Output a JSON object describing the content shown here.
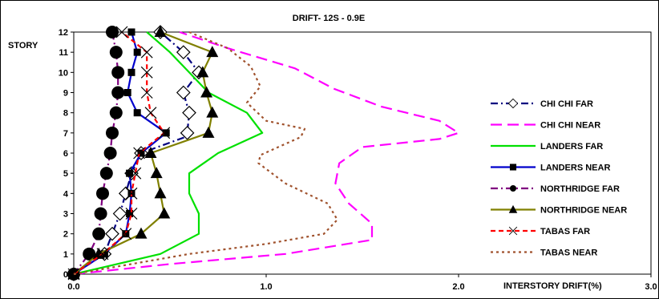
{
  "chart_data": {
    "type": "line",
    "title": "DRIFT- 12S - 0.9E",
    "xlabel": "INTERSTORY DRIFT(%)",
    "ylabel": "STORY",
    "xlim": [
      0,
      3
    ],
    "ylim": [
      0,
      12
    ],
    "xticks": [
      "0.0",
      "1.0",
      "2.0",
      "3.0"
    ],
    "yticks": [
      "0",
      "1",
      "2",
      "3",
      "4",
      "5",
      "6",
      "7",
      "8",
      "9",
      "10",
      "11",
      "12"
    ],
    "grid": false,
    "legend_position": "right",
    "series": [
      {
        "name": "CHI CHI FAR",
        "color": "#000080",
        "dash": "dashdot",
        "marker": "diamond-open",
        "x": [
          0.0,
          0.16,
          0.2,
          0.24,
          0.27,
          0.3,
          0.35,
          0.58,
          0.59,
          0.6,
          0.57,
          0.65,
          0.57,
          0.45
        ],
        "y": [
          0,
          1,
          2,
          3,
          4,
          5,
          6,
          6.8,
          7,
          8,
          9,
          10,
          11,
          12
        ]
      },
      {
        "name": "CHI CHI NEAR",
        "color": "#FF00FF",
        "dash": "longdash",
        "marker": "none",
        "x": [
          0.0,
          0.5,
          1.1,
          1.55,
          1.55,
          1.43,
          1.36,
          1.38,
          1.5,
          1.9,
          2.0,
          1.9,
          1.6,
          1.35,
          1.15,
          0.8,
          0.55
        ],
        "y": [
          0,
          0.5,
          1,
          1.7,
          2.5,
          3.5,
          4.5,
          5.5,
          6.3,
          6.7,
          7,
          7.6,
          8.3,
          9.2,
          10.2,
          11.2,
          12
        ]
      },
      {
        "name": "LANDERS FAR",
        "color": "#00E000",
        "dash": "solid",
        "marker": "none",
        "x": [
          0.0,
          0.45,
          0.65,
          0.65,
          0.6,
          0.6,
          0.75,
          0.98,
          0.9,
          0.7,
          0.6,
          0.5,
          0.38
        ],
        "y": [
          0,
          1,
          2,
          3,
          4,
          5,
          6,
          7,
          8,
          9,
          10,
          11,
          12
        ]
      },
      {
        "name": "LANDERS NEAR",
        "color": "#0000CC",
        "dash": "solid",
        "marker": "square",
        "x": [
          0.0,
          0.16,
          0.27,
          0.29,
          0.3,
          0.29,
          0.35,
          0.48,
          0.33,
          0.28,
          0.3,
          0.33,
          0.3
        ],
        "y": [
          0,
          1,
          2,
          3,
          4,
          5,
          6,
          7,
          8,
          9,
          10,
          11,
          12
        ]
      },
      {
        "name": "NORTHRIDGE FAR",
        "color": "#800080",
        "dash": "dashdot",
        "marker": "circle",
        "x": [
          0.0,
          0.08,
          0.13,
          0.14,
          0.15,
          0.17,
          0.19,
          0.2,
          0.22,
          0.23,
          0.23,
          0.22,
          0.2
        ],
        "y": [
          0,
          1,
          2,
          3,
          4,
          5,
          6,
          7,
          8,
          9,
          10,
          11,
          12
        ]
      },
      {
        "name": "NORTHRIDGE NEAR",
        "color": "#808000",
        "dash": "solid",
        "marker": "triangle",
        "x": [
          0.0,
          0.13,
          0.35,
          0.47,
          0.45,
          0.43,
          0.4,
          0.7,
          0.72,
          0.69,
          0.67,
          0.72,
          0.45
        ],
        "y": [
          0,
          1,
          2,
          3,
          4,
          5,
          6,
          7,
          8,
          9,
          10,
          11,
          12
        ]
      },
      {
        "name": "TABAS FAR",
        "color": "#FF0000",
        "dash": "dash",
        "marker": "x",
        "x": [
          0.0,
          0.15,
          0.27,
          0.3,
          0.3,
          0.32,
          0.34,
          0.47,
          0.4,
          0.38,
          0.38,
          0.38,
          0.25
        ],
        "y": [
          0,
          1,
          2,
          3,
          4,
          5,
          6,
          7,
          8,
          9,
          10,
          11,
          12
        ]
      },
      {
        "name": "TABAS NEAR",
        "color": "#A0522D",
        "dash": "dot",
        "marker": "none",
        "x": [
          0.0,
          0.6,
          1.0,
          1.3,
          1.37,
          1.32,
          1.1,
          0.96,
          0.97,
          1.18,
          1.2,
          1.0,
          0.9,
          0.97,
          0.92,
          0.8,
          0.6
        ],
        "y": [
          0,
          1,
          1.5,
          2,
          2.7,
          3.5,
          4.5,
          5.5,
          5.9,
          6.8,
          7.2,
          7.6,
          8.5,
          9.3,
          10.3,
          11.2,
          12
        ]
      }
    ]
  }
}
